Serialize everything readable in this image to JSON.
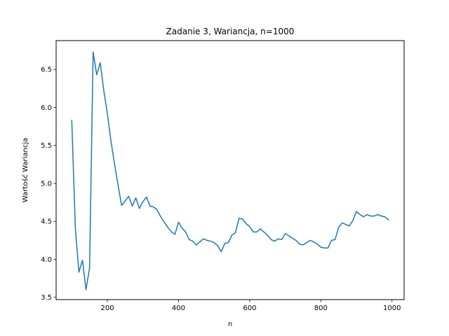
{
  "chart_data": {
    "type": "line",
    "title": "Zadanie 3, Wariancja, n=1000",
    "xlabel": "n",
    "ylabel": "Wartość Wariancja",
    "xlim": [
      56,
      1034
    ],
    "ylim": [
      3.47,
      6.88
    ],
    "xticks": [
      200,
      400,
      600,
      800,
      1000
    ],
    "yticks": [
      3.5,
      4.0,
      4.5,
      5.0,
      5.5,
      6.0,
      6.5
    ],
    "ytick_labels": [
      "3.5",
      "4.0",
      "4.5",
      "5.0",
      "5.5",
      "6.0",
      "6.5"
    ],
    "grid": false,
    "series": [
      {
        "color": "#1f77b4",
        "x": [
          100,
          110,
          120,
          130,
          140,
          150,
          160,
          170,
          180,
          190,
          200,
          210,
          220,
          230,
          240,
          250,
          260,
          270,
          280,
          290,
          300,
          310,
          320,
          330,
          340,
          350,
          360,
          370,
          380,
          390,
          400,
          410,
          420,
          430,
          440,
          450,
          460,
          470,
          480,
          490,
          500,
          510,
          520,
          530,
          540,
          550,
          560,
          570,
          580,
          590,
          600,
          610,
          620,
          630,
          640,
          650,
          660,
          670,
          680,
          690,
          700,
          710,
          720,
          730,
          740,
          750,
          760,
          770,
          780,
          790,
          800,
          810,
          820,
          830,
          840,
          850,
          860,
          870,
          880,
          890,
          900,
          910,
          920,
          930,
          940,
          950,
          960,
          970,
          980,
          990
        ],
        "y": [
          5.83,
          4.41,
          3.83,
          3.99,
          3.6,
          3.89,
          6.73,
          6.43,
          6.59,
          6.22,
          5.92,
          5.56,
          5.26,
          4.98,
          4.71,
          4.77,
          4.83,
          4.7,
          4.81,
          4.67,
          4.76,
          4.82,
          4.7,
          4.69,
          4.65,
          4.56,
          4.49,
          4.42,
          4.36,
          4.33,
          4.49,
          4.41,
          4.36,
          4.26,
          4.24,
          4.19,
          4.23,
          4.27,
          4.25,
          4.24,
          4.22,
          4.18,
          4.1,
          4.21,
          4.22,
          4.32,
          4.35,
          4.54,
          4.53,
          4.47,
          4.43,
          4.36,
          4.36,
          4.4,
          4.36,
          4.32,
          4.26,
          4.24,
          4.27,
          4.26,
          4.34,
          4.31,
          4.28,
          4.25,
          4.2,
          4.19,
          4.22,
          4.25,
          4.23,
          4.2,
          4.16,
          4.15,
          4.15,
          4.25,
          4.26,
          4.42,
          4.48,
          4.46,
          4.44,
          4.51,
          4.63,
          4.59,
          4.56,
          4.59,
          4.57,
          4.57,
          4.59,
          4.57,
          4.56,
          4.52
        ]
      }
    ]
  }
}
